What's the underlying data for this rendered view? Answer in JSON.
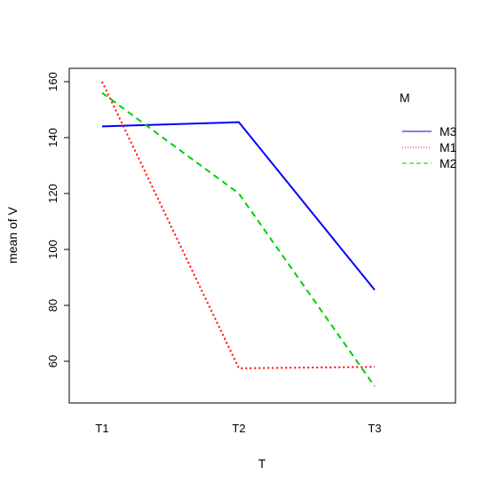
{
  "chart_data": {
    "type": "line",
    "title": "",
    "xlabel": "T",
    "ylabel": "mean of V",
    "categories": [
      "T1",
      "T2",
      "T3"
    ],
    "ylim": [
      45,
      162
    ],
    "yticks": [
      60,
      80,
      100,
      120,
      140,
      160
    ],
    "grid": false,
    "legend": {
      "title": "M",
      "placement": "top-right",
      "entries": [
        "M3",
        "M1",
        "M2"
      ]
    },
    "series": [
      {
        "name": "M3",
        "values": [
          144,
          145.5,
          85.5
        ],
        "color": "#0000FF",
        "linestyle": "solid"
      },
      {
        "name": "M1",
        "values": [
          160,
          57.5,
          58
        ],
        "color": "#FF0000",
        "linestyle": "dotted"
      },
      {
        "name": "M2",
        "values": [
          156,
          120,
          51
        ],
        "color": "#00CD00",
        "linestyle": "dashed"
      }
    ]
  }
}
